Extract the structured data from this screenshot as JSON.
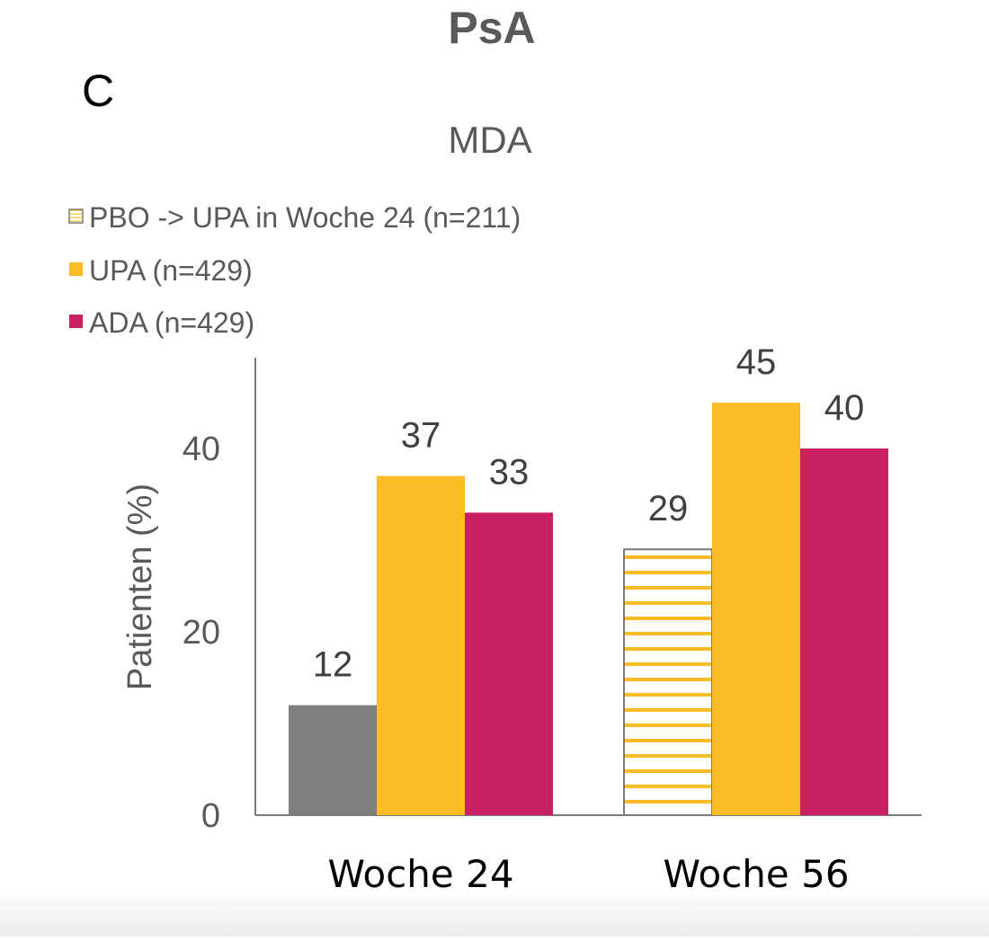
{
  "chart_data": {
    "type": "bar",
    "title": "PsA",
    "panel_label": "C",
    "subtitle": "MDA",
    "ylabel": "Patienten (%)",
    "xlabel": "",
    "ylim": [
      0,
      50
    ],
    "yticks": [
      0,
      20,
      40
    ],
    "grid": false,
    "legend_position": "top-left",
    "categories": [
      "Woche 24",
      "Woche 56"
    ],
    "series": [
      {
        "name": "PBO -> UPA in Woche 24 (n=211)",
        "values": [
          12,
          29
        ],
        "color": "#7f7f7f",
        "hatch_color": "#fbbd26",
        "styles": [
          "solid",
          "hatched"
        ]
      },
      {
        "name": "UPA (n=429)",
        "values": [
          37,
          45
        ],
        "color": "#fbbd26"
      },
      {
        "name": "ADA (n=429)",
        "values": [
          33,
          40
        ],
        "color": "#c82060"
      }
    ]
  }
}
